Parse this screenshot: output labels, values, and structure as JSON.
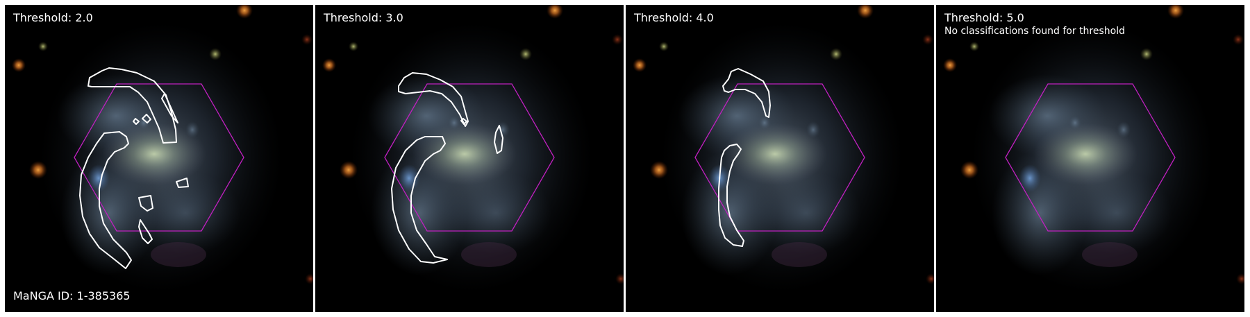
{
  "figure": {
    "manga_id_label": "MaNGA ID: 1-385365",
    "colors": {
      "background": "#000000",
      "contour": "#ffffff",
      "hexagon": "#c020c0",
      "text": "#ffffff"
    },
    "panels": [
      {
        "threshold_label": "Threshold: 2.0",
        "message": ""
      },
      {
        "threshold_label": "Threshold: 3.0",
        "message": ""
      },
      {
        "threshold_label": "Threshold: 4.0",
        "message": ""
      },
      {
        "threshold_label": "Threshold: 5.0",
        "message": "No classifications found for threshold"
      }
    ]
  }
}
